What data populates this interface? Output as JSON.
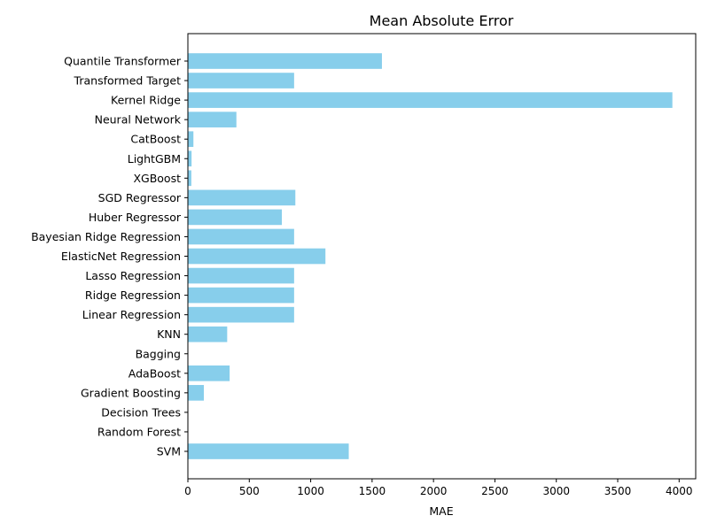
{
  "chart_data": {
    "type": "bar",
    "orientation": "horizontal",
    "title": "Mean Absolute Error",
    "xlabel": "MAE",
    "ylabel": "",
    "xlim": [
      0,
      4135
    ],
    "xticks": [
      0,
      500,
      1000,
      1500,
      2000,
      2500,
      3000,
      3500,
      4000
    ],
    "bar_color": "#87ceeb",
    "grid": false,
    "categories": [
      "SVM",
      "Random Forest",
      "Decision Trees",
      "Gradient Boosting",
      "AdaBoost",
      "Bagging",
      "KNN",
      "Linear Regression",
      "Ridge Regression",
      "Lasso Regression",
      "ElasticNet Regression",
      "Bayesian Ridge Regression",
      "Huber Regressor",
      "SGD Regressor",
      "XGBoost",
      "LightGBM",
      "CatBoost",
      "Neural Network",
      "Kernel Ridge",
      "Transformed Target",
      "Quantile Transformer"
    ],
    "values": [
      1310,
      0,
      0,
      130,
      340,
      0,
      320,
      865,
      865,
      865,
      1120,
      865,
      765,
      875,
      28,
      30,
      45,
      395,
      3945,
      865,
      1580
    ]
  }
}
